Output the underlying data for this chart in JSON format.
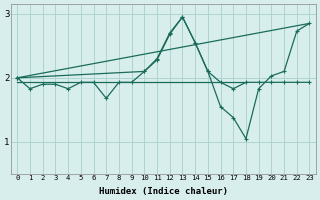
{
  "xlabel": "Humidex (Indice chaleur)",
  "bg_color": "#d8eeed",
  "grid_color": "#aed4d0",
  "line_color": "#1a6b5a",
  "xlim": [
    -0.5,
    23.5
  ],
  "ylim": [
    0.5,
    3.15
  ],
  "yticks": [
    1,
    2,
    3
  ],
  "series": {
    "flat_line": {
      "x": [
        0,
        1,
        2,
        3,
        4,
        5,
        6,
        7,
        8,
        9,
        10,
        11,
        12,
        13,
        14,
        15,
        16,
        17,
        18
      ],
      "y": [
        1.93,
        1.93,
        1.93,
        1.93,
        1.93,
        1.93,
        1.93,
        1.93,
        1.93,
        1.93,
        1.93,
        1.93,
        1.93,
        1.93,
        1.93,
        1.93,
        1.93,
        1.93,
        1.93
      ]
    },
    "diagonal_line": {
      "x": [
        0,
        23
      ],
      "y": [
        2.0,
        2.85
      ]
    },
    "zigzag_early": {
      "x": [
        0,
        1,
        2,
        3,
        4,
        5,
        6,
        7,
        8,
        9,
        10,
        11,
        12,
        13,
        14,
        15,
        16,
        17,
        18,
        19,
        20,
        21,
        22,
        23
      ],
      "y": [
        2.0,
        1.83,
        1.9,
        1.9,
        1.83,
        1.93,
        1.93,
        1.68,
        1.93,
        1.93,
        2.1,
        2.3,
        2.7,
        2.95,
        2.55,
        2.1,
        1.93,
        1.83,
        1.93,
        1.93,
        1.93,
        1.93,
        1.93,
        1.93
      ]
    },
    "big_zigzag": {
      "x": [
        0,
        10,
        11,
        12,
        13,
        14,
        15,
        16,
        17,
        18,
        19,
        20,
        21,
        22,
        23
      ],
      "y": [
        2.0,
        2.1,
        2.28,
        2.68,
        2.95,
        2.55,
        2.1,
        1.55,
        1.38,
        1.05,
        1.83,
        2.03,
        2.1,
        2.73,
        2.85
      ]
    }
  }
}
